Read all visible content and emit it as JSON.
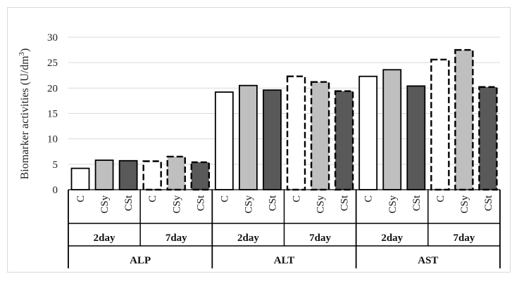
{
  "chart_data": {
    "type": "bar",
    "ylabel": "Biomarker activities (U/dm",
    "ylabel_sup": "3",
    "ylabel_end": ")",
    "ylim": [
      0,
      30
    ],
    "yticks": [
      "0",
      "5",
      "10",
      "15",
      "20",
      "25",
      "30"
    ],
    "grid": true,
    "groups": [
      {
        "name": "ALP",
        "days": [
          {
            "name": "2day",
            "bars": [
              {
                "label": "C",
                "value": 4.2,
                "style": "white-solid"
              },
              {
                "label": "CSy",
                "value": 5.8,
                "style": "grey-solid"
              },
              {
                "label": "CSt",
                "value": 5.7,
                "style": "dark-solid"
              }
            ]
          },
          {
            "name": "7day",
            "bars": [
              {
                "label": "C",
                "value": 5.6,
                "style": "white-dashed"
              },
              {
                "label": "CSy",
                "value": 6.5,
                "style": "grey-dashed"
              },
              {
                "label": "CSt",
                "value": 5.4,
                "style": "dark-dashed"
              }
            ]
          }
        ]
      },
      {
        "name": "ALT",
        "days": [
          {
            "name": "2day",
            "bars": [
              {
                "label": "C",
                "value": 19.2,
                "style": "white-solid"
              },
              {
                "label": "CSy",
                "value": 20.5,
                "style": "grey-solid"
              },
              {
                "label": "CSt",
                "value": 19.6,
                "style": "dark-solid"
              }
            ]
          },
          {
            "name": "7day",
            "bars": [
              {
                "label": "C",
                "value": 22.3,
                "style": "white-dashed"
              },
              {
                "label": "CSy",
                "value": 21.2,
                "style": "grey-dashed"
              },
              {
                "label": "CSt",
                "value": 19.4,
                "style": "dark-dashed"
              }
            ]
          }
        ]
      },
      {
        "name": "AST",
        "days": [
          {
            "name": "2day",
            "bars": [
              {
                "label": "C",
                "value": 22.3,
                "style": "white-solid"
              },
              {
                "label": "CSy",
                "value": 23.6,
                "style": "grey-solid"
              },
              {
                "label": "CSt",
                "value": 20.4,
                "style": "dark-solid"
              }
            ]
          },
          {
            "name": "7day",
            "bars": [
              {
                "label": "C",
                "value": 25.6,
                "style": "white-dashed"
              },
              {
                "label": "CSy",
                "value": 27.5,
                "style": "grey-dashed"
              },
              {
                "label": "CSt",
                "value": 20.2,
                "style": "dark-dashed"
              }
            ]
          }
        ]
      }
    ],
    "colors": {
      "white": "#ffffff",
      "grey": "#bfbfbf",
      "dark": "#595959",
      "stroke": "#000000",
      "grid": "#d9d9d9"
    }
  }
}
